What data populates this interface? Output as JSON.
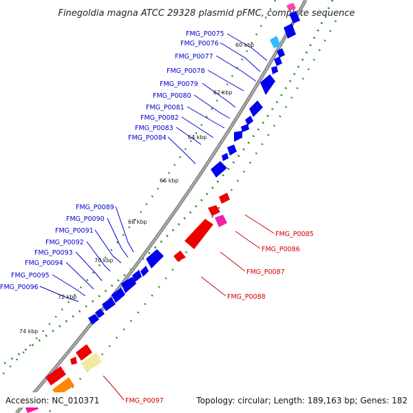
{
  "title": "Finegoldia magna ATCC 29328 plasmid pFMC, complete sequence",
  "footer": {
    "accession": "Accession: NC_010371",
    "summary": "Topology: circular; Length: 189,163 bp; Genes: 182"
  },
  "colors": {
    "forward_gene": "#0000ee",
    "reverse_gene": "#ee0000",
    "backbone": "#888888",
    "tick_dots": "#228822",
    "label_forward": "#0000cc",
    "label_reverse": "#cc0000"
  },
  "ticks": [
    "60 kbp",
    "62 kbp",
    "64 kbp",
    "66 kbp",
    "68 kbp",
    "70 kbp",
    "72 kbp",
    "74 kbp"
  ],
  "forward_labels": [
    "FMG_P0075",
    "FMG_P0076",
    "FMG_P0077",
    "FMG_P0078",
    "FMG_P0079",
    "FMG_P0080",
    "FMG_P0081",
    "FMG_P0082",
    "FMG_P0083",
    "FMG_P0084",
    "FMG_P0089",
    "FMG_P0090",
    "FMG_P0091",
    "FMG_P0092",
    "FMG_P0093",
    "FMG_P0094",
    "FMG_P0095",
    "FMG_P0096"
  ],
  "reverse_labels": [
    "FMG_P0085",
    "FMG_P0086",
    "FMG_P0087",
    "FMG_P0088",
    "FMG_P0097"
  ]
}
